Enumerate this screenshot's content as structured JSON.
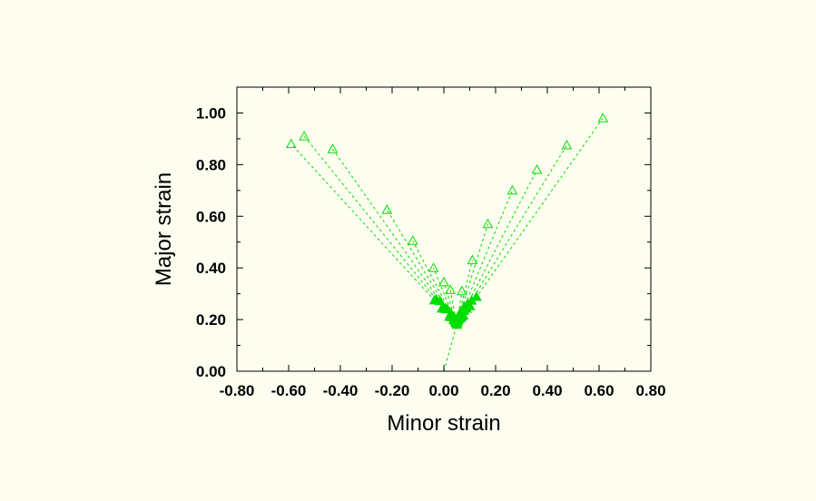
{
  "chart_data": {
    "type": "scatter",
    "title": "",
    "xlabel": "Minor strain",
    "ylabel": "Major strain",
    "xlim": [
      -0.8,
      0.8
    ],
    "ylim": [
      0.0,
      1.1
    ],
    "x_ticks": [
      "-0.80",
      "-0.60",
      "-0.40",
      "-0.20",
      "0.00",
      "0.20",
      "0.40",
      "0.60",
      "0.80"
    ],
    "y_ticks": [
      "0.00",
      "0.20",
      "0.40",
      "0.60",
      "0.80",
      "1.00"
    ],
    "grid": false,
    "legend": "none",
    "marker": "triangle-open",
    "series_color": "#00dd00",
    "background_color": "#fefef0",
    "plot_background_color": "#fefef0",
    "common_start": [
      0.0,
      0.0
    ],
    "branch_point": [
      0.05,
      0.18
    ],
    "endpoints": [
      [
        -0.59,
        0.88
      ],
      [
        -0.54,
        0.91
      ],
      [
        -0.43,
        0.86
      ],
      [
        -0.22,
        0.625
      ],
      [
        -0.12,
        0.505
      ],
      [
        -0.04,
        0.4
      ],
      [
        0.0,
        0.345
      ],
      [
        0.025,
        0.315
      ],
      [
        0.07,
        0.31
      ],
      [
        0.11,
        0.43
      ],
      [
        0.17,
        0.57
      ],
      [
        0.265,
        0.7
      ],
      [
        0.36,
        0.78
      ],
      [
        0.475,
        0.875
      ],
      [
        0.615,
        0.98
      ]
    ]
  }
}
